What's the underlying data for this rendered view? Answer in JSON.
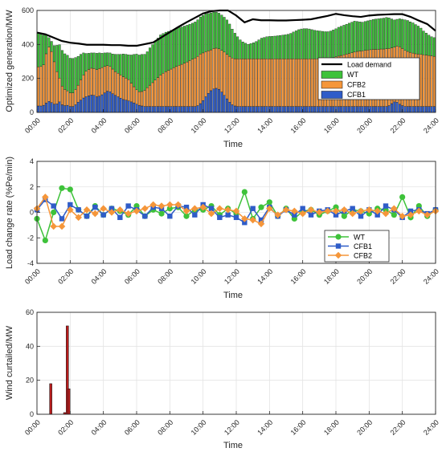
{
  "figure": {
    "panel1": {
      "ylabel": "Optimized generation/MW",
      "xlabel": "Time"
    },
    "panel2": {
      "ylabel": "Load change rate (%Pe/min)",
      "xlabel": "Time"
    },
    "panel3": {
      "ylabel": "Wind curtailed/MW",
      "xlabel": "Time"
    }
  },
  "chart_data": [
    {
      "type": "bar",
      "stacked": true,
      "title": "",
      "xlabel": "Time",
      "ylabel": "Optimized generation/MW",
      "xlim": [
        0,
        24
      ],
      "ylim": [
        0,
        600
      ],
      "xticks": [
        "00:00",
        "02:00",
        "04:00",
        "06:00",
        "08:00",
        "10:00",
        "12:00",
        "14:00",
        "16:00",
        "18:00",
        "20:00",
        "22:00",
        "24:00"
      ],
      "yticks": [
        0,
        200,
        400,
        600
      ],
      "grid": true,
      "legend_position": "right",
      "line": {
        "name": "Load demand",
        "color": "#000000",
        "x": [
          0,
          0.5,
          1,
          1.5,
          2,
          2.5,
          3,
          3.5,
          4,
          4.5,
          5,
          5.5,
          6,
          6.5,
          7,
          7.5,
          8,
          8.5,
          9,
          9.5,
          10,
          10.5,
          11,
          11.5,
          12,
          12.5,
          13,
          13.5,
          14,
          14.5,
          15,
          15.5,
          16,
          16.5,
          17,
          17.5,
          18,
          18.5,
          19,
          19.5,
          20,
          20.5,
          21,
          21.5,
          22,
          22.5,
          23,
          23.5,
          24
        ],
        "y": [
          470,
          460,
          440,
          420,
          410,
          405,
          398,
          398,
          398,
          396,
          396,
          392,
          392,
          402,
          412,
          442,
          472,
          502,
          530,
          556,
          582,
          596,
          600,
          600,
          570,
          530,
          548,
          542,
          542,
          541,
          541,
          543,
          545,
          548,
          558,
          568,
          580,
          572,
          566,
          562,
          570,
          574,
          576,
          578,
          578,
          562,
          540,
          520,
          480
        ]
      },
      "series": [
        {
          "name": "CFB1",
          "color": "#2f5cc8",
          "values": [
            38,
            38,
            42,
            55,
            65,
            58,
            48,
            50,
            62,
            45,
            40,
            42,
            35,
            35,
            45,
            60,
            72,
            85,
            92,
            98,
            102,
            100,
            92,
            96,
            104,
            115,
            125,
            122,
            110,
            100,
            92,
            84,
            76,
            72,
            68,
            62,
            56,
            48,
            42,
            38,
            35,
            35,
            35,
            35,
            35,
            35,
            35,
            35,
            35,
            35,
            35,
            35,
            35,
            35,
            35,
            35,
            35,
            35,
            35,
            35,
            40,
            52,
            70,
            92,
            112,
            128,
            138,
            142,
            136,
            120,
            100,
            80,
            60,
            45,
            38,
            35,
            35,
            35,
            35,
            35,
            35,
            35,
            35,
            35,
            35,
            35,
            35,
            35,
            35,
            35,
            35,
            35,
            35,
            35,
            35,
            35,
            35,
            35,
            35,
            35,
            35,
            35,
            35,
            35,
            35,
            35,
            35,
            35,
            35,
            35,
            35,
            35,
            35,
            35,
            35,
            35,
            35,
            35,
            35,
            35,
            35,
            35,
            35,
            35,
            35,
            35,
            35,
            35,
            35,
            35,
            35,
            35,
            40,
            52,
            62,
            60,
            48,
            40,
            35,
            35,
            35,
            35,
            35,
            35,
            35,
            35,
            35,
            35,
            35,
            35
          ]
        },
        {
          "name": "CFB2",
          "color": "#f5963a",
          "values": [
            230,
            232,
            238,
            290,
            320,
            300,
            250,
            190,
            140,
            110,
            95,
            85,
            80,
            80,
            90,
            100,
            120,
            135,
            150,
            155,
            158,
            158,
            160,
            162,
            160,
            155,
            150,
            148,
            145,
            140,
            138,
            136,
            134,
            130,
            125,
            110,
            95,
            85,
            80,
            85,
            95,
            110,
            125,
            140,
            155,
            170,
            185,
            195,
            205,
            212,
            220,
            228,
            235,
            242,
            248,
            255,
            262,
            270,
            278,
            285,
            290,
            292,
            280,
            265,
            250,
            240,
            238,
            236,
            238,
            245,
            255,
            262,
            270,
            275,
            278,
            280,
            280,
            280,
            280,
            280,
            280,
            280,
            280,
            280,
            280,
            280,
            280,
            280,
            280,
            280,
            280,
            280,
            280,
            280,
            280,
            280,
            280,
            280,
            280,
            280,
            280,
            280,
            280,
            280,
            280,
            280,
            280,
            280,
            280,
            282,
            284,
            288,
            292,
            296,
            300,
            304,
            308,
            312,
            316,
            320,
            324,
            326,
            328,
            330,
            332,
            334,
            336,
            336,
            336,
            338,
            338,
            340,
            336,
            328,
            322,
            330,
            338,
            336,
            330,
            324,
            318,
            314,
            310,
            308,
            306,
            304,
            302,
            300,
            298,
            295
          ]
        },
        {
          "name": "WT",
          "color": "#3ec23a",
          "values": [
            198,
            190,
            175,
            110,
            55,
            60,
            95,
            155,
            196,
            210,
            210,
            209,
            204,
            203,
            188,
            170,
            150,
            130,
            105,
            95,
            90,
            92,
            96,
            92,
            84,
            80,
            76,
            80,
            89,
            102,
            112,
            122,
            134,
            140,
            146,
            166,
            190,
            210,
            216,
            218,
            212,
            212,
            220,
            224,
            228,
            232,
            236,
            234,
            232,
            230,
            228,
            226,
            224,
            222,
            220,
            218,
            216,
            214,
            212,
            212,
            215,
            218,
            221,
            223,
            220,
            218,
            214,
            212,
            210,
            208,
            205,
            202,
            190,
            170,
            150,
            130,
            112,
            100,
            92,
            86,
            90,
            95,
            102,
            112,
            122,
            126,
            130,
            132,
            133,
            134,
            136,
            138,
            140,
            142,
            145,
            150,
            158,
            165,
            172,
            176,
            178,
            178,
            176,
            172,
            168,
            166,
            164,
            162,
            160,
            158,
            160,
            162,
            165,
            170,
            172,
            174,
            176,
            178,
            180,
            182,
            176,
            172,
            168,
            170,
            172,
            174,
            176,
            178,
            180,
            180,
            182,
            184,
            180,
            170,
            160,
            158,
            165,
            172,
            180,
            182,
            180,
            178,
            172,
            165,
            155,
            140,
            130,
            120,
            112,
            110
          ]
        }
      ]
    },
    {
      "type": "line",
      "title": "",
      "xlabel": "Time",
      "ylabel": "Load change rate (%Pe/min)",
      "xlim": [
        0,
        24
      ],
      "ylim": [
        -4,
        4
      ],
      "xticks": [
        "00:00",
        "02:00",
        "04:00",
        "06:00",
        "08:00",
        "10:00",
        "12:00",
        "14:00",
        "16:00",
        "18:00",
        "20:00",
        "22:00",
        "24:00"
      ],
      "yticks": [
        -4,
        -2,
        0,
        2,
        4
      ],
      "grid": true,
      "legend_position": "bottom-right",
      "series": [
        {
          "name": "WT",
          "color": "#3ec23a",
          "marker": "circle",
          "x": [
            0,
            0.5,
            1,
            1.5,
            2,
            2.5,
            3,
            3.5,
            4,
            4.5,
            5,
            5.5,
            6,
            6.5,
            7,
            7.5,
            8,
            8.5,
            9,
            9.5,
            10,
            10.5,
            11,
            11.5,
            12,
            12.5,
            13,
            13.5,
            14,
            14.5,
            15,
            15.5,
            16,
            16.5,
            17,
            17.5,
            18,
            18.5,
            19,
            19.5,
            20,
            20.5,
            21,
            21.5,
            22,
            22.5,
            23,
            23.5,
            24
          ],
          "y": [
            -0.5,
            -2.2,
            0,
            1.9,
            1.8,
            0.2,
            -0.3,
            0.5,
            -0.2,
            0.3,
            0.1,
            -0.2,
            0.5,
            -0.3,
            0.2,
            -0.1,
            0.3,
            0.4,
            -0.3,
            0.2,
            0.2,
            0.5,
            -0.2,
            0.3,
            -0.1,
            1.6,
            -0.5,
            0.4,
            0.8,
            -0.3,
            0.3,
            -0.5,
            0.1,
            0.2,
            -0.2,
            0.1,
            0.4,
            -0.3,
            0.2,
            0.1,
            -0.1,
            0.3,
            0.2,
            -0.2,
            1.2,
            -0.4,
            0.5,
            -0.3,
            0.2
          ]
        },
        {
          "name": "CFB1",
          "color": "#2f5cc8",
          "marker": "square",
          "x": [
            0,
            0.5,
            1,
            1.5,
            2,
            2.5,
            3,
            3.5,
            4,
            4.5,
            5,
            5.5,
            6,
            6.5,
            7,
            7.5,
            8,
            8.5,
            9,
            9.5,
            10,
            10.5,
            11,
            11.5,
            12,
            12.5,
            13,
            13.5,
            14,
            14.5,
            15,
            15.5,
            16,
            16.5,
            17,
            17.5,
            18,
            18.5,
            19,
            19.5,
            20,
            20.5,
            21,
            21.5,
            22,
            22.5,
            23,
            23.5,
            24
          ],
          "y": [
            0.2,
            1.0,
            0.5,
            -0.5,
            0.6,
            0.2,
            -0.3,
            0.4,
            -0.2,
            0.3,
            -0.4,
            0.5,
            0.2,
            -0.3,
            0.4,
            0.3,
            -0.3,
            0.5,
            0.4,
            -0.2,
            0.6,
            0.3,
            -0.4,
            -0.2,
            -0.4,
            -0.8,
            0.3,
            -0.6,
            0.4,
            -0.3,
            0.2,
            -0.2,
            0.3,
            -0.2,
            0.1,
            0.2,
            -0.2,
            0.1,
            0.3,
            -0.3,
            0.2,
            -0.2,
            0.5,
            0.2,
            -0.4,
            0.1,
            0.2,
            -0.1,
            0.2
          ]
        },
        {
          "name": "CFB2",
          "color": "#f5963a",
          "marker": "diamond",
          "x": [
            0,
            0.5,
            1,
            1.5,
            2,
            2.5,
            3,
            3.5,
            4,
            4.5,
            5,
            5.5,
            6,
            6.5,
            7,
            7.5,
            8,
            8.5,
            9,
            9.5,
            10,
            10.5,
            11,
            11.5,
            12,
            12.5,
            13,
            13.5,
            14,
            14.5,
            15,
            15.5,
            16,
            16.5,
            17,
            17.5,
            18,
            18.5,
            19,
            19.5,
            20,
            20.5,
            21,
            21.5,
            22,
            22.5,
            23,
            23.5,
            24
          ],
          "y": [
            0.3,
            1.2,
            -1.1,
            -1.1,
            0.2,
            -0.4,
            0.2,
            -0.1,
            0.3,
            0.0,
            0.2,
            -0.1,
            0.1,
            0.3,
            0.6,
            0.5,
            0.6,
            0.6,
            0.1,
            0.3,
            0.4,
            -0.1,
            0.3,
            0.2,
            0.1,
            -0.5,
            -0.6,
            -0.9,
            0.3,
            -0.2,
            0.2,
            0.1,
            -0.1,
            0.2,
            0.0,
            0.1,
            0.1,
            0.2,
            -0.1,
            0.1,
            0.2,
            0.1,
            -0.1,
            0.3,
            -0.3,
            -0.2,
            0.1,
            -0.2,
            0.1
          ]
        }
      ]
    },
    {
      "type": "bar",
      "title": "",
      "xlabel": "Time",
      "ylabel": "Wind curtailed/MW",
      "xlim": [
        0,
        24
      ],
      "ylim": [
        0,
        60
      ],
      "xticks": [
        "00:00",
        "02:00",
        "04:00",
        "06:00",
        "08:00",
        "10:00",
        "12:00",
        "14:00",
        "16:00",
        "18:00",
        "20:00",
        "22:00",
        "24:00"
      ],
      "yticks": [
        0,
        20,
        40,
        60
      ],
      "grid": true,
      "bar_color": "#b71c1c",
      "x": [
        0.83,
        1.67,
        1.83,
        1.92
      ],
      "values": [
        18,
        1,
        52,
        15
      ]
    }
  ]
}
